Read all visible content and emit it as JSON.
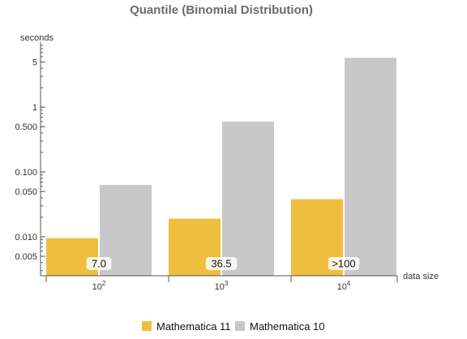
{
  "chart_data": {
    "type": "bar",
    "title": "Quantile (Binomial Distribution)",
    "ylabel": "seconds",
    "xlabel": "data size",
    "yscale": "log",
    "ylim": [
      0.0025,
      9
    ],
    "grid": false,
    "legend_position": "bottom",
    "categories": [
      {
        "base": "10",
        "exp": "2"
      },
      {
        "base": "10",
        "exp": "3"
      },
      {
        "base": "10",
        "exp": "4"
      }
    ],
    "series": [
      {
        "name": "Mathematica 11",
        "color": "#efbe3f",
        "values": [
          0.0095,
          0.019,
          0.038
        ]
      },
      {
        "name": "Mathematica 10",
        "color": "#c8c8c8",
        "values": [
          0.063,
          0.6,
          5.8
        ]
      }
    ],
    "bar_labels": [
      "7.0",
      "36.5",
      ">100"
    ],
    "yticks_major": [
      {
        "value": 0.005,
        "label": "0.005"
      },
      {
        "value": 0.01,
        "label": "0.010"
      },
      {
        "value": 0.05,
        "label": "0.050"
      },
      {
        "value": 0.1,
        "label": "0.100"
      },
      {
        "value": 0.5,
        "label": "0.500"
      },
      {
        "value": 1,
        "label": "1"
      },
      {
        "value": 5,
        "label": "5"
      }
    ]
  }
}
